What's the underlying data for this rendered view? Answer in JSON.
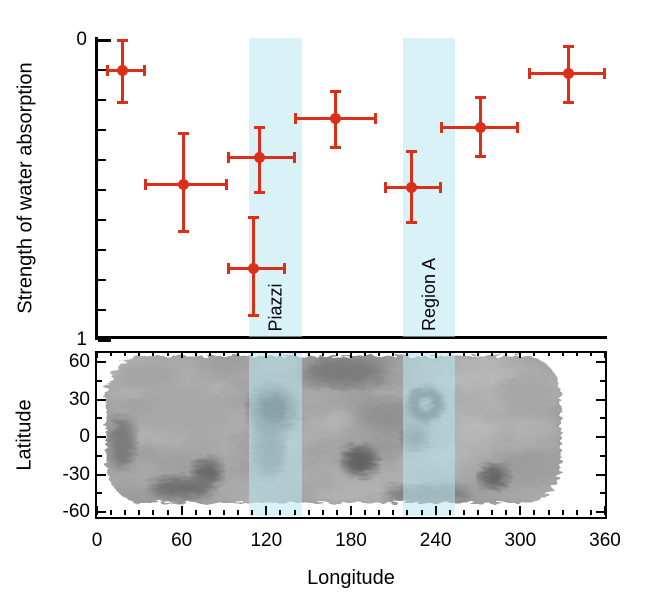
{
  "figure": {
    "colors": {
      "data_red": "#dc2f1a",
      "highlight_band_rgba": "rgba(185,232,243,0.55)",
      "axis_black": "#000000",
      "map_base_gray": "#979797"
    }
  },
  "chart_data": [
    {
      "type": "scatter",
      "panel": "top",
      "title": "",
      "xlabel": "",
      "ylabel": "Strength of water absorption",
      "xlim": [
        0,
        360
      ],
      "ylim": [
        0,
        1
      ],
      "y_axis_note": "inverted: 0 at top, 1 at bottom; minor ticks every 0.1",
      "yticks": [
        0,
        1
      ],
      "ytick_labels": [
        "0",
        "1"
      ],
      "y_minor_tick_step": 0.1,
      "marker_color": "#dc2f1a",
      "points": [
        {
          "lon": 18,
          "value": 0.1,
          "lon_range": [
            7,
            34
          ],
          "value_range": [
            0.0,
            0.21
          ]
        },
        {
          "lon": 61,
          "value": 0.48,
          "lon_range": [
            34,
            92
          ],
          "value_range": [
            0.31,
            0.64
          ]
        },
        {
          "lon": 115,
          "value": 0.39,
          "lon_range": [
            93,
            140
          ],
          "value_range": [
            0.29,
            0.51
          ]
        },
        {
          "lon": 111,
          "value": 0.76,
          "lon_range": [
            93,
            133
          ],
          "value_range": [
            0.59,
            0.92
          ]
        },
        {
          "lon": 169,
          "value": 0.26,
          "lon_range": [
            140,
            198
          ],
          "value_range": [
            0.17,
            0.36
          ]
        },
        {
          "lon": 223,
          "value": 0.49,
          "lon_range": [
            204,
            244
          ],
          "value_range": [
            0.37,
            0.61
          ]
        },
        {
          "lon": 272,
          "value": 0.29,
          "lon_range": [
            244,
            298
          ],
          "value_range": [
            0.19,
            0.39
          ]
        },
        {
          "lon": 334,
          "value": 0.11,
          "lon_range": [
            306,
            360
          ],
          "value_range": [
            0.02,
            0.21
          ]
        }
      ],
      "highlight_regions": [
        {
          "label": "Piazzi",
          "lon_range": [
            108,
            145
          ]
        },
        {
          "label": "Region A",
          "lon_range": [
            217,
            254
          ]
        }
      ]
    },
    {
      "type": "heatmap",
      "panel": "bottom",
      "desc": "Grayscale mottled surface brightness map spanning longitude ~5-330 and latitude ~-50 to +58, with a dark spot in the Piazzi band and a bright spot ringed by dark material in the Region A band",
      "xlabel": "Longitude",
      "ylabel": "Latitude",
      "xlim": [
        0,
        360
      ],
      "ylim": [
        -60,
        60
      ],
      "xticks": [
        0,
        60,
        120,
        180,
        240,
        300,
        360
      ],
      "xtick_labels": [
        "0",
        "60",
        "120",
        "180",
        "240",
        "300",
        "360"
      ],
      "x_minor_tick_step": 10,
      "yticks": [
        60,
        30,
        0,
        -30,
        -60
      ],
      "ytick_labels": [
        "60",
        "30",
        "0",
        "-30",
        "-60"
      ],
      "y_minor_tick_step": 15,
      "highlight_regions": [
        {
          "label": "Piazzi",
          "lon_range": [
            108,
            145
          ]
        },
        {
          "label": "Region A",
          "lon_range": [
            217,
            254
          ]
        }
      ],
      "features": [
        {
          "name": "piazzi-dark-spot",
          "lon": 125,
          "lat": 23
        },
        {
          "name": "region-a-bright-spot",
          "lon": 233,
          "lat": 26
        }
      ]
    }
  ]
}
